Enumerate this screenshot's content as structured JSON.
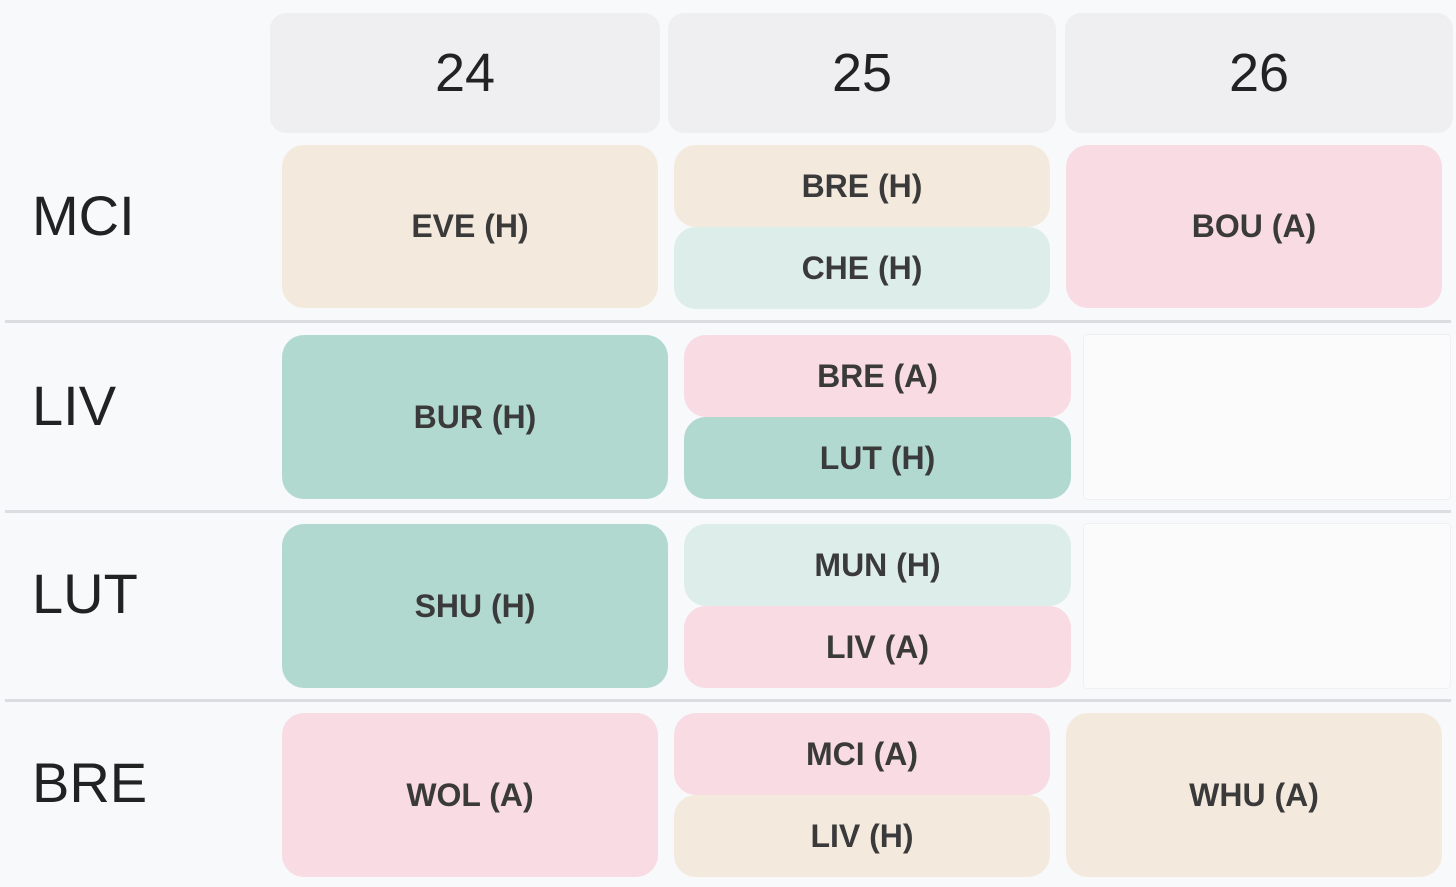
{
  "gameweeks": [
    "24",
    "25",
    "26"
  ],
  "colors": {
    "peach": "#f4e9dd",
    "pink": "#f8dbe3",
    "light_teal": "#dcedea",
    "teal": "#b2d9d0",
    "header_bg": "#efeff1"
  },
  "teams": [
    {
      "name": "MCI",
      "fixtures": {
        "gw24": [
          {
            "label": "EVE (H)",
            "color": "#f4e9dd"
          }
        ],
        "gw25": [
          {
            "label": "BRE (H)",
            "color": "#f4e9dd"
          },
          {
            "label": "CHE (H)",
            "color": "#dcedea"
          }
        ],
        "gw26": [
          {
            "label": "BOU (A)",
            "color": "#f8dbe3"
          }
        ]
      }
    },
    {
      "name": "LIV",
      "fixtures": {
        "gw24": [
          {
            "label": "BUR (H)",
            "color": "#b2d9d0"
          }
        ],
        "gw25": [
          {
            "label": "BRE (A)",
            "color": "#f8dbe3"
          },
          {
            "label": "LUT (H)",
            "color": "#b2d9d0"
          }
        ],
        "gw26": []
      }
    },
    {
      "name": "LUT",
      "fixtures": {
        "gw24": [
          {
            "label": "SHU (H)",
            "color": "#b2d9d0"
          }
        ],
        "gw25": [
          {
            "label": "MUN (H)",
            "color": "#dcedea"
          },
          {
            "label": "LIV (A)",
            "color": "#f8dbe3"
          }
        ],
        "gw26": []
      }
    },
    {
      "name": "BRE",
      "fixtures": {
        "gw24": [
          {
            "label": "WOL (A)",
            "color": "#f8dbe3"
          }
        ],
        "gw25": [
          {
            "label": "MCI (A)",
            "color": "#f8dbe3"
          },
          {
            "label": "LIV (H)",
            "color": "#f4e9dd"
          }
        ],
        "gw26": [
          {
            "label": "WHU (A)",
            "color": "#f4e9dd"
          }
        ]
      }
    }
  ]
}
